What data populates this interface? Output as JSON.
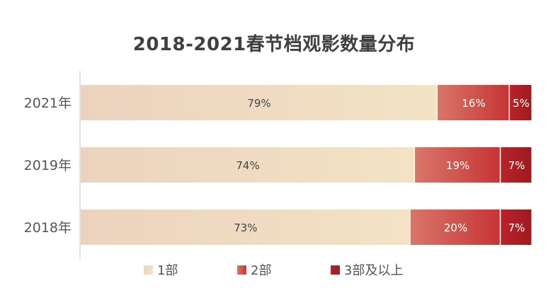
{
  "chart_data": {
    "type": "bar",
    "orientation": "horizontal",
    "stacked": "percent",
    "title": "2018-2021春节档观影数量分布",
    "categories": [
      "2021年",
      "2019年",
      "2018年"
    ],
    "series": [
      {
        "name": "1部",
        "values": [
          79,
          74,
          73
        ],
        "labels": [
          "79%",
          "74%",
          "73%"
        ]
      },
      {
        "name": "2部",
        "values": [
          16,
          19,
          20
        ],
        "labels": [
          "16%",
          "19%",
          "20%"
        ]
      },
      {
        "name": "3部及以上",
        "values": [
          5,
          7,
          7
        ],
        "labels": [
          "5%",
          "7%",
          "7%"
        ]
      }
    ],
    "xlim": [
      0,
      100
    ],
    "legend": "bottom",
    "grid": false,
    "colors": {
      "1部": [
        "#ecd3bf",
        "#f3e3c4"
      ],
      "2部": [
        "#d8766a",
        "#c73535"
      ],
      "3部及以上": [
        "#b8242a",
        "#9e1a1f"
      ]
    }
  }
}
